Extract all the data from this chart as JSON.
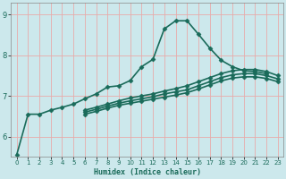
{
  "xlabel": "Humidex (Indice chaleur)",
  "bg_color": "#cce8ec",
  "grid_color": "#aacccc",
  "line_color": "#1a6b5a",
  "xlim": [
    -0.5,
    23.5
  ],
  "ylim": [
    5.5,
    9.3
  ],
  "yticks": [
    6,
    7,
    8,
    9
  ],
  "xticks": [
    0,
    1,
    2,
    3,
    4,
    5,
    6,
    7,
    8,
    9,
    10,
    11,
    12,
    13,
    14,
    15,
    16,
    17,
    18,
    19,
    20,
    21,
    22,
    23
  ],
  "series": [
    {
      "x": [
        0,
        1,
        2,
        3,
        4,
        5,
        6,
        7,
        8,
        9,
        10,
        11,
        12,
        13,
        14,
        15,
        16,
        17,
        18,
        19,
        20,
        21,
        22
      ],
      "y": [
        5.55,
        6.55,
        6.55,
        6.65,
        6.72,
        6.8,
        6.93,
        7.05,
        7.22,
        7.25,
        7.38,
        7.72,
        7.9,
        8.65,
        8.85,
        8.85,
        8.52,
        8.18,
        7.88,
        7.72,
        7.62,
        7.6,
        7.55
      ],
      "marker": "D",
      "markersize": 2.5,
      "lw": 1.2
    },
    {
      "x": [
        6,
        7,
        8,
        9,
        10,
        11,
        12,
        13,
        14,
        15,
        16,
        17,
        18,
        19,
        20,
        21,
        22,
        23
      ],
      "y": [
        6.65,
        6.72,
        6.8,
        6.88,
        6.95,
        7.0,
        7.05,
        7.12,
        7.18,
        7.25,
        7.35,
        7.45,
        7.55,
        7.62,
        7.65,
        7.65,
        7.6,
        7.5
      ],
      "marker": "D",
      "markersize": 2.5,
      "lw": 1.2
    },
    {
      "x": [
        6,
        7,
        8,
        9,
        10,
        11,
        12,
        13,
        14,
        15,
        16,
        17,
        18,
        19,
        20,
        21,
        22,
        23
      ],
      "y": [
        6.6,
        6.67,
        6.75,
        6.82,
        6.88,
        6.93,
        6.98,
        7.05,
        7.1,
        7.15,
        7.25,
        7.35,
        7.45,
        7.52,
        7.55,
        7.55,
        7.5,
        7.42
      ],
      "marker": "D",
      "markersize": 2.5,
      "lw": 1.2
    },
    {
      "x": [
        6,
        7,
        8,
        9,
        10,
        11,
        12,
        13,
        14,
        15,
        16,
        17,
        18,
        19,
        20,
        21,
        22,
        23
      ],
      "y": [
        6.55,
        6.62,
        6.7,
        6.77,
        6.82,
        6.87,
        6.92,
        6.97,
        7.02,
        7.08,
        7.17,
        7.27,
        7.37,
        7.44,
        7.47,
        7.47,
        7.43,
        7.35
      ],
      "marker": "D",
      "markersize": 2.5,
      "lw": 1.2
    }
  ]
}
